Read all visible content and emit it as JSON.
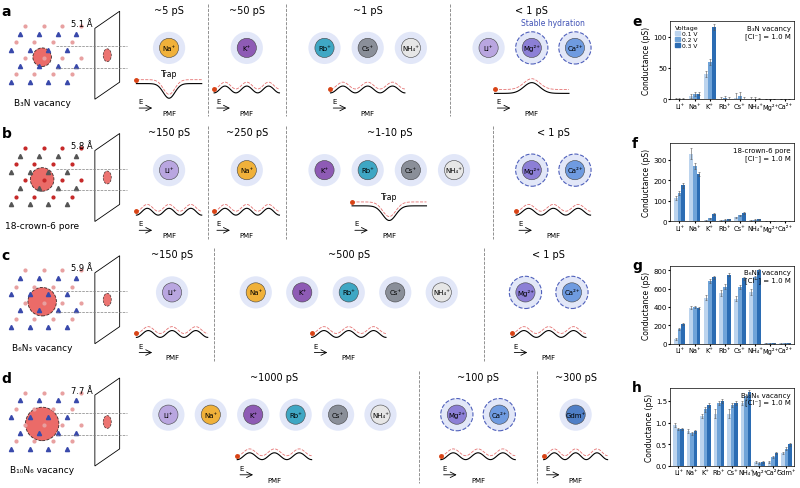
{
  "diagram": {
    "field_label": "E",
    "pmf_label": "PMF",
    "ion_colors": {
      "Li⁺": "#b9a6e0",
      "Na⁺": "#f0b13a",
      "K⁺": "#8e5bb5",
      "Rb⁺": "#3fa7c4",
      "Cs⁺": "#8a8f99",
      "NH₄⁺": "#e6e6e6",
      "Mg²⁺": "#8c7fd6",
      "Ca²⁺": "#6f9be0",
      "Gdm⁺": "#4f7fc7"
    },
    "panels": [
      {
        "label": "a",
        "pore": "B₃N vacancy",
        "size": "5.1 Å",
        "groups": [
          {
            "conductance": "~5 pS",
            "ions": [
              "Na⁺"
            ],
            "trap": "Trap"
          },
          {
            "conductance": "~50 pS",
            "ions": [
              "K⁺"
            ]
          },
          {
            "conductance": "~1 pS",
            "ions": [
              "Rb⁺",
              "Cs⁺",
              "NH₄⁺"
            ]
          },
          {
            "conductance": "< 1 pS",
            "ions": [
              "Li⁺",
              "Mg²⁺",
              "Ca²⁺"
            ],
            "hydration": "Stable hydration"
          }
        ]
      },
      {
        "label": "b",
        "pore": "18-crown-6 pore",
        "size": "5.8 Å",
        "groups": [
          {
            "conductance": "~150 pS",
            "ions": [
              "Li⁺"
            ]
          },
          {
            "conductance": "~250 pS",
            "ions": [
              "Na⁺"
            ]
          },
          {
            "conductance": "~1-10 pS",
            "ions": [
              "K⁺",
              "Rb⁺",
              "Cs⁺",
              "NH₄⁺"
            ],
            "trap": "Trap"
          },
          {
            "conductance": "< 1 pS",
            "ions": [
              "Mg²⁺",
              "Ca²⁺"
            ]
          }
        ]
      },
      {
        "label": "c",
        "pore": "B₆N₃ vacancy",
        "size": "5.9 Å",
        "groups": [
          {
            "conductance": "~150 pS",
            "ions": [
              "Li⁺"
            ]
          },
          {
            "conductance": "~500 pS",
            "ions": [
              "Na⁺",
              "K⁺",
              "Rb⁺",
              "Cs⁺",
              "NH₄⁺"
            ]
          },
          {
            "conductance": "< 1 pS",
            "ions": [
              "Mg²⁺",
              "Ca²⁺"
            ]
          }
        ]
      },
      {
        "label": "d",
        "pore": "B₁₀N₆ vacancy",
        "size": "7.7 Å",
        "groups": [
          {
            "conductance": "~1000 pS",
            "ions": [
              "Li⁺",
              "Na⁺",
              "K⁺",
              "Rb⁺",
              "Cs⁺",
              "NH₄⁺"
            ]
          },
          {
            "conductance": "~100 pS",
            "ions": [
              "Mg²⁺",
              "Ca²⁺"
            ]
          },
          {
            "conductance": "~300 pS",
            "ions": [
              "Gdm⁺"
            ]
          }
        ]
      }
    ]
  },
  "chart_data": [
    {
      "type": "bar",
      "panel": "e",
      "title": "B₃N vacancy",
      "subtitle": "[Cl⁻] = 1.0 M",
      "y_label": "Conductance (pS)",
      "categories": [
        "Li⁺",
        "Na⁺",
        "K⁺",
        "Rb⁺",
        "Cs⁺",
        "NH₄⁺",
        "Mg²⁺",
        "Ca²⁺"
      ],
      "series": [
        {
          "name": "0.1 V",
          "color": "#bcd4ee",
          "values": [
            1,
            5,
            40,
            1,
            2,
            1,
            0,
            0
          ],
          "errors": [
            0.5,
            3,
            5,
            3,
            8,
            2,
            0.3,
            0.3
          ]
        },
        {
          "name": "0.2 V",
          "color": "#6fa3d8",
          "values": [
            1,
            8,
            60,
            2,
            5,
            1,
            0,
            0
          ],
          "errors": [
            0.5,
            3,
            5,
            3,
            6,
            2,
            0.3,
            0.3
          ]
        },
        {
          "name": "0.3 V",
          "color": "#2b6cb3",
          "values": [
            1,
            9,
            115,
            1,
            1,
            1,
            0,
            0
          ],
          "errors": [
            0.5,
            2,
            5,
            2,
            3,
            1,
            0.3,
            0.3
          ]
        }
      ],
      "ylim": [
        0,
        125
      ],
      "yticks": [
        0,
        50,
        100
      ],
      "legend": "upper left",
      "legend_title": "Voltage"
    },
    {
      "type": "bar",
      "panel": "f",
      "title": "18-crown-6 pore",
      "subtitle": "[Cl⁻] = 1.0 M",
      "y_label": "Conductance (pS)",
      "categories": [
        "Li⁺",
        "Na⁺",
        "K⁺",
        "Rb⁺",
        "Cs⁺",
        "NH₄⁺",
        "Mg²⁺",
        "Ca²⁺"
      ],
      "series": [
        {
          "color": "#bcd4ee",
          "values": [
            115,
            330,
            5,
            5,
            20,
            5,
            0,
            0
          ],
          "errors": [
            10,
            25,
            2,
            2,
            3,
            2,
            0.5,
            0.5
          ]
        },
        {
          "color": "#6fa3d8",
          "values": [
            140,
            270,
            15,
            8,
            30,
            8,
            0,
            0
          ],
          "errors": [
            10,
            15,
            3,
            2,
            3,
            2,
            0.5,
            0.5
          ]
        },
        {
          "color": "#2b6cb3",
          "values": [
            175,
            230,
            35,
            10,
            40,
            10,
            0,
            0
          ],
          "errors": [
            10,
            10,
            4,
            2,
            4,
            2,
            0.5,
            0.5
          ]
        }
      ],
      "ylim": [
        0,
        380
      ],
      "yticks": [
        0,
        100,
        200,
        300
      ]
    },
    {
      "type": "bar",
      "panel": "g",
      "title": "B₆N₃ vacancy",
      "subtitle": "[Cl⁻] = 1.0 M",
      "y_label": "Conductance (pS)",
      "categories": [
        "Li⁺",
        "Na⁺",
        "K⁺",
        "Rb⁺",
        "Cs⁺",
        "NH₄⁺",
        "Mg²⁺",
        "Ca²⁺"
      ],
      "series": [
        {
          "color": "#bcd4ee",
          "values": [
            50,
            390,
            500,
            550,
            490,
            560,
            5,
            3
          ],
          "errors": [
            10,
            15,
            30,
            30,
            30,
            30,
            2,
            2
          ]
        },
        {
          "color": "#6fa3d8",
          "values": [
            160,
            400,
            680,
            620,
            620,
            720,
            3,
            3
          ],
          "errors": [
            15,
            15,
            20,
            25,
            20,
            20,
            2,
            2
          ]
        },
        {
          "color": "#2b6cb3",
          "values": [
            210,
            390,
            720,
            750,
            710,
            800,
            3,
            3
          ],
          "errors": [
            10,
            10,
            20,
            15,
            15,
            15,
            2,
            2
          ]
        }
      ],
      "ylim": [
        0,
        850
      ],
      "yticks": [
        0,
        200,
        400,
        600,
        800
      ]
    },
    {
      "type": "bar",
      "panel": "h",
      "title": "B₁₀N₆ vacancy",
      "subtitle": "[Cl⁻] = 1.0 M",
      "y_label": "Conductance (pS)",
      "categories": [
        "Li⁺",
        "Na⁺",
        "K⁺",
        "Rb⁺",
        "Cs⁺",
        "NH₄⁺",
        "Mg²⁺",
        "Ca²⁺",
        "Gdm⁺"
      ],
      "series": [
        {
          "color": "#bcd4ee",
          "values": [
            0.95,
            0.8,
            1.15,
            1.2,
            1.2,
            1.45,
            0.1,
            0.1,
            0.3
          ],
          "errors": [
            0.05,
            0.05,
            0.05,
            0.1,
            0.1,
            0.05,
            0.02,
            0.02,
            0.03
          ]
        },
        {
          "color": "#6fa3d8",
          "values": [
            0.85,
            0.75,
            1.3,
            1.45,
            1.4,
            1.6,
            0.07,
            0.2,
            0.4
          ],
          "errors": [
            0.03,
            0.03,
            0.05,
            0.05,
            0.05,
            0.05,
            0.02,
            0.02,
            0.03
          ]
        },
        {
          "color": "#2b6cb3",
          "values": [
            0.85,
            0.8,
            1.4,
            1.5,
            1.45,
            1.7,
            0.1,
            0.3,
            0.5
          ],
          "errors": [
            0.03,
            0.03,
            0.05,
            0.05,
            0.05,
            0.05,
            0.02,
            0.02,
            0.03
          ]
        }
      ],
      "ylim": [
        0,
        1.8
      ],
      "yticks": [
        {
          "value": 0,
          "label": "0.0"
        },
        0.5,
        {
          "value": 1,
          "label": "1.0"
        },
        1.5
      ]
    }
  ]
}
